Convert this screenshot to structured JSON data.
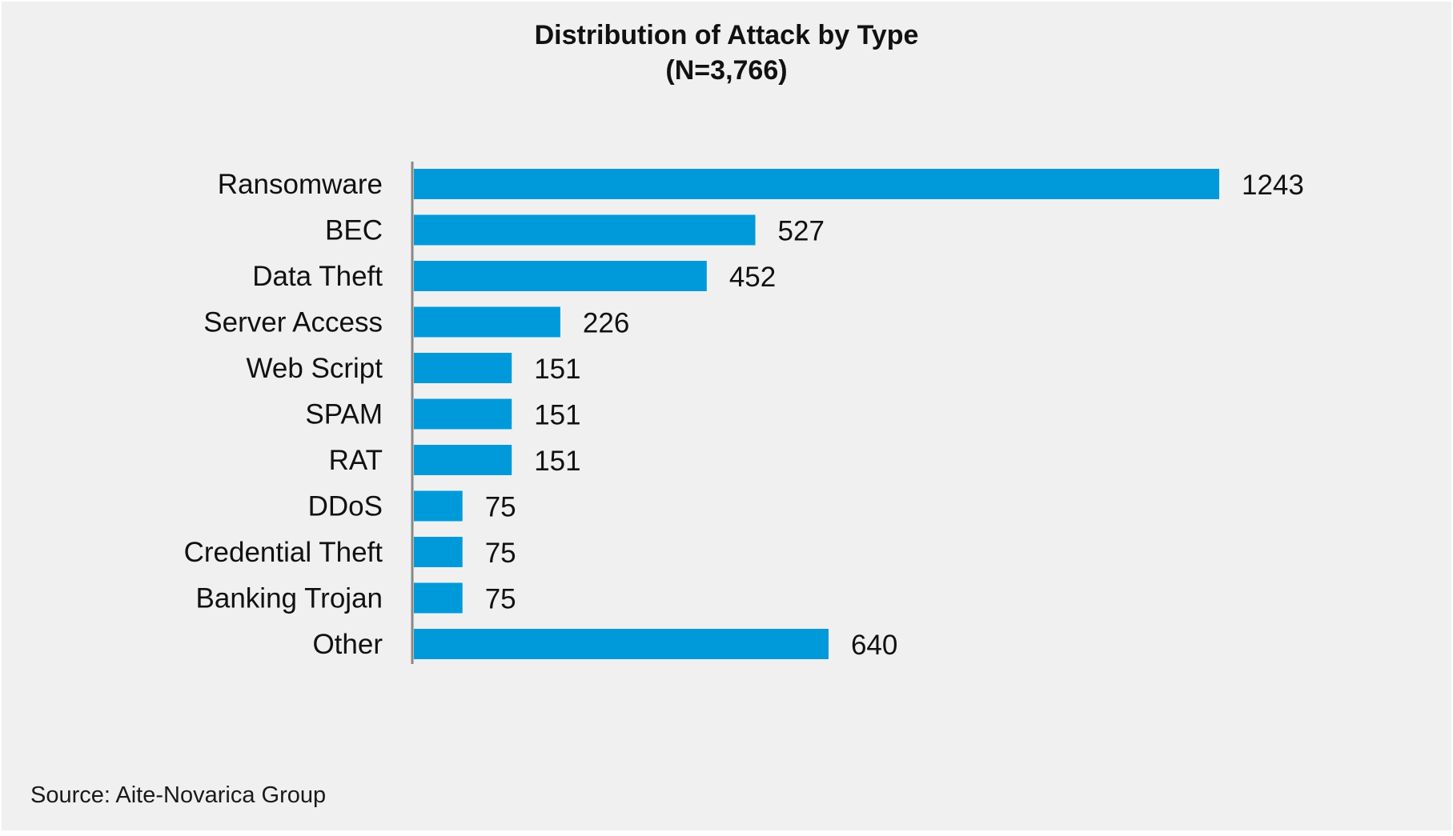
{
  "chart_data": {
    "type": "bar",
    "orientation": "horizontal",
    "title": "Distribution of Attack by Type",
    "subtitle": "(N=3,766)",
    "categories": [
      "Ransomware",
      "BEC",
      "Data Theft",
      "Server Access",
      "Web Script",
      "SPAM",
      "RAT",
      "DDoS",
      "Credential Theft",
      "Banking Trojan",
      "Other"
    ],
    "values": [
      1243,
      527,
      452,
      226,
      151,
      151,
      151,
      75,
      75,
      75,
      640
    ],
    "xlim": [
      0,
      1243
    ],
    "grid": false,
    "legend": "none",
    "bar_color": "#009ADA",
    "axis_color": "#888888"
  },
  "footer": {
    "source": "Source: Aite-Novarica Group"
  }
}
